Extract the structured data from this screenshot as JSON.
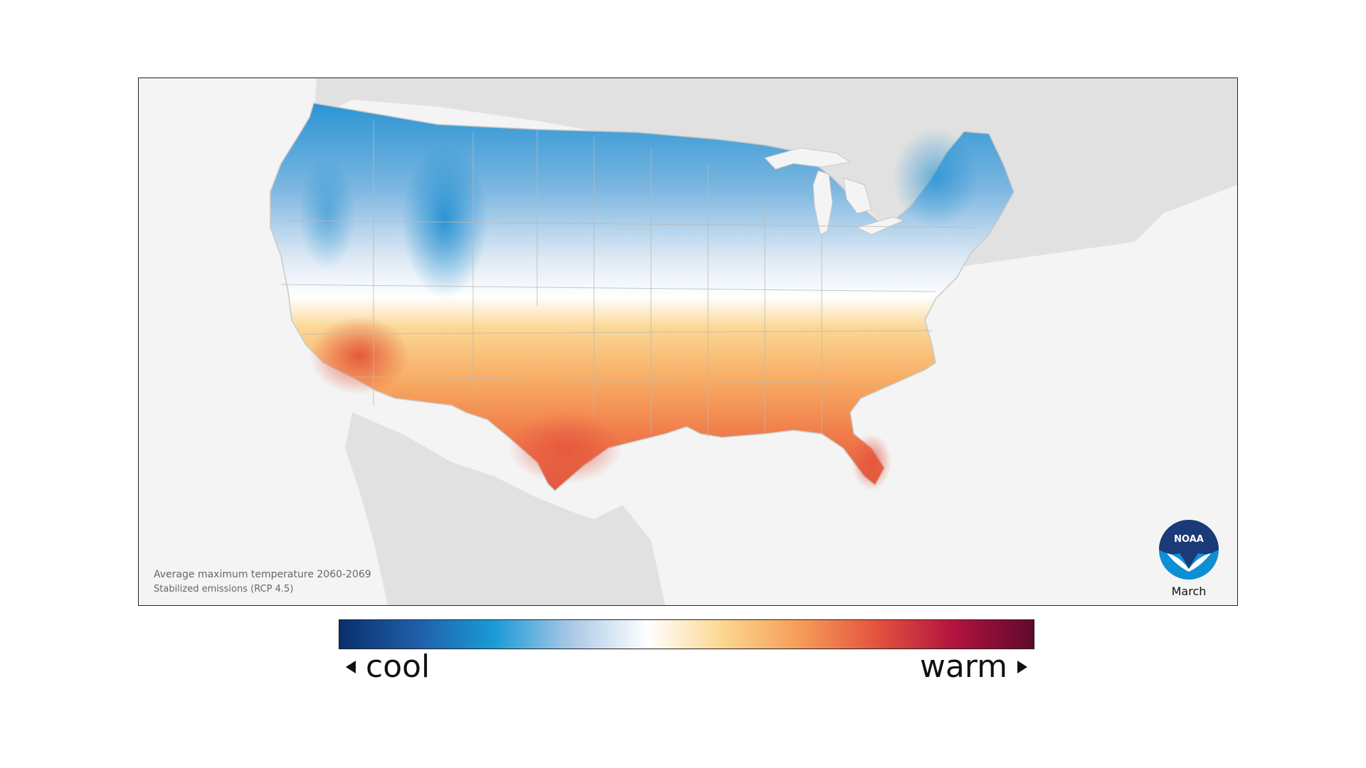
{
  "map": {
    "caption_line1": "Average maximum temperature 2060-2069",
    "caption_line2": "Stabilized emissions (RCP 4.5)",
    "month": "March",
    "logo_text": "NOAA"
  },
  "legend": {
    "cool_label": "cool",
    "warm_label": "warm",
    "colors": [
      "#0a2f6b",
      "#1f5ea8",
      "#1a9ad6",
      "#a9c8e6",
      "#ffffff",
      "#fbd58c",
      "#f59a58",
      "#e2503e",
      "#b0123e",
      "#5e0a2c"
    ]
  },
  "colors": {
    "frame_background": "#f4f4f4",
    "land_neighbor": "#e1e1e1",
    "water": "#f4f4f4",
    "noaa_dark": "#1b3a78",
    "noaa_light": "#0d8fd6"
  }
}
